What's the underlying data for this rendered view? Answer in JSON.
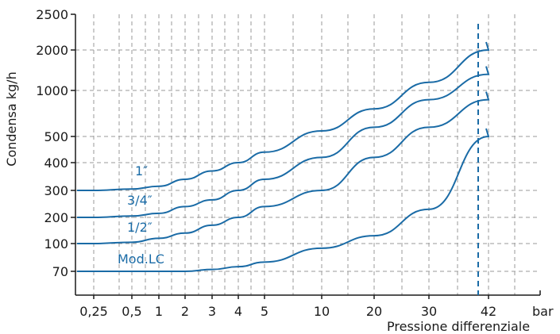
{
  "colors": {
    "series": "#1a6ba6",
    "axis": "#1a1a1a",
    "grid": "#9a9a9a",
    "limit": "#1a6ba6"
  },
  "chart_data": {
    "type": "line",
    "title": "",
    "xlabel": "Pressione differenziale",
    "x_unit": "bar",
    "ylabel": "Condensa kg/h",
    "x_ticks": [
      "0,25",
      "0,5",
      "1",
      "2",
      "3",
      "4",
      "5",
      "10",
      "20",
      "30",
      "42"
    ],
    "y_ticks": [
      "70",
      "100",
      "200",
      "300",
      "400",
      "500",
      "1000",
      "2000",
      "2500"
    ],
    "grid": true,
    "limit_line_x": "42",
    "series": [
      {
        "name": "1″",
        "x": [
          "0,25",
          "0,5",
          "1",
          "2",
          "3",
          "4",
          "5",
          "10",
          "20",
          "30",
          "42"
        ],
        "y": [
          300,
          305,
          315,
          340,
          370,
          400,
          440,
          560,
          800,
          1200,
          2000
        ]
      },
      {
        "name": "3/4″",
        "x": [
          "0,25",
          "0,5",
          "1",
          "2",
          "3",
          "4",
          "5",
          "10",
          "20",
          "30",
          "42"
        ],
        "y": [
          200,
          205,
          215,
          240,
          265,
          300,
          340,
          420,
          600,
          900,
          1400
        ]
      },
      {
        "name": "1/2″",
        "x": [
          "0,25",
          "0,5",
          "1",
          "2",
          "3",
          "4",
          "5",
          "10",
          "20",
          "30",
          "42"
        ],
        "y": [
          100,
          105,
          120,
          140,
          170,
          200,
          240,
          300,
          420,
          600,
          900
        ]
      },
      {
        "name": "Mod.LC",
        "x": [
          "0,25",
          "0,5",
          "1",
          "2",
          "3",
          "4",
          "5",
          "10",
          "20",
          "30",
          "42"
        ],
        "y": [
          70,
          70,
          70,
          70,
          72,
          75,
          80,
          95,
          130,
          230,
          500
        ]
      }
    ]
  }
}
